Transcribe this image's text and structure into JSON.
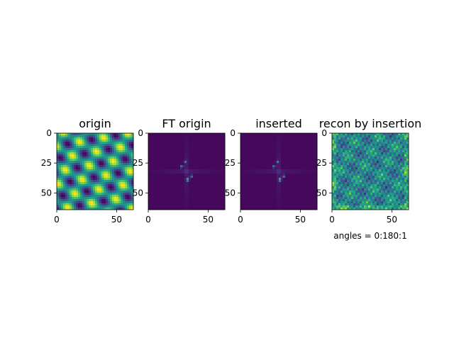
{
  "chart_data": [
    {
      "type": "heatmap",
      "title": "origin",
      "pattern": "origin",
      "colormap": "viridis",
      "xlim": [
        0,
        64
      ],
      "ylim": [
        64,
        0
      ],
      "x_ticks": [
        "0",
        "50"
      ],
      "y_ticks": [
        "0",
        "25",
        "50"
      ]
    },
    {
      "type": "heatmap",
      "title": "FT origin",
      "pattern": "ft",
      "colormap": "viridis",
      "xlim": [
        0,
        64
      ],
      "ylim": [
        64,
        0
      ],
      "x_ticks": [
        "0",
        "50"
      ],
      "y_ticks": [
        "0",
        "25",
        "50"
      ]
    },
    {
      "type": "heatmap",
      "title": "inserted",
      "pattern": "ft",
      "colormap": "viridis",
      "xlim": [
        0,
        64
      ],
      "ylim": [
        64,
        0
      ],
      "x_ticks": [
        "0",
        "50"
      ],
      "y_ticks": [
        "0",
        "25",
        "50"
      ]
    },
    {
      "type": "heatmap",
      "title": "recon by insertion",
      "pattern": "recon",
      "colormap": "viridis",
      "xlim": [
        0,
        64
      ],
      "ylim": [
        64,
        0
      ],
      "x_ticks": [
        "0",
        "50"
      ],
      "y_ticks": [
        "0",
        "25",
        "50"
      ],
      "annotation": "angles = 0:180:1"
    }
  ]
}
